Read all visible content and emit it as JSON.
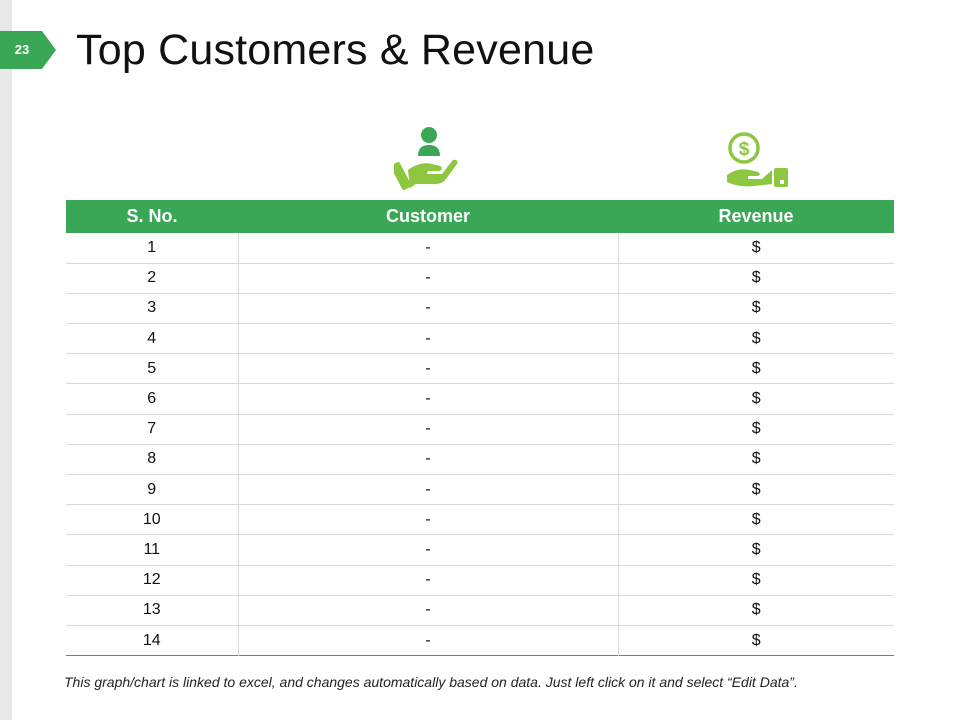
{
  "slide": {
    "number": "23",
    "title": "Top Customers & Revenue"
  },
  "icons": {
    "customer": "customer-in-hand-icon",
    "revenue": "money-in-hand-icon"
  },
  "colors": {
    "accent": "#3aa757",
    "icon": "#8dc63f",
    "left_bar": "#e9e9e9"
  },
  "table": {
    "headers": {
      "sno": "S. No.",
      "customer": "Customer",
      "revenue": "Revenue"
    },
    "rows": [
      {
        "sno": "1",
        "customer": "-",
        "revenue": "$"
      },
      {
        "sno": "2",
        "customer": "-",
        "revenue": "$"
      },
      {
        "sno": "3",
        "customer": "-",
        "revenue": "$"
      },
      {
        "sno": "4",
        "customer": "-",
        "revenue": "$"
      },
      {
        "sno": "5",
        "customer": "-",
        "revenue": "$"
      },
      {
        "sno": "6",
        "customer": "-",
        "revenue": "$"
      },
      {
        "sno": "7",
        "customer": "-",
        "revenue": "$"
      },
      {
        "sno": "8",
        "customer": "-",
        "revenue": "$"
      },
      {
        "sno": "9",
        "customer": "-",
        "revenue": "$"
      },
      {
        "sno": "10",
        "customer": "-",
        "revenue": "$"
      },
      {
        "sno": "11",
        "customer": "-",
        "revenue": "$"
      },
      {
        "sno": "12",
        "customer": "-",
        "revenue": "$"
      },
      {
        "sno": "13",
        "customer": "-",
        "revenue": "$"
      },
      {
        "sno": "14",
        "customer": "-",
        "revenue": "$"
      }
    ]
  },
  "footnote": "This graph/chart is linked to excel, and changes automatically based on data. Just left click on it and select “Edit Data”."
}
